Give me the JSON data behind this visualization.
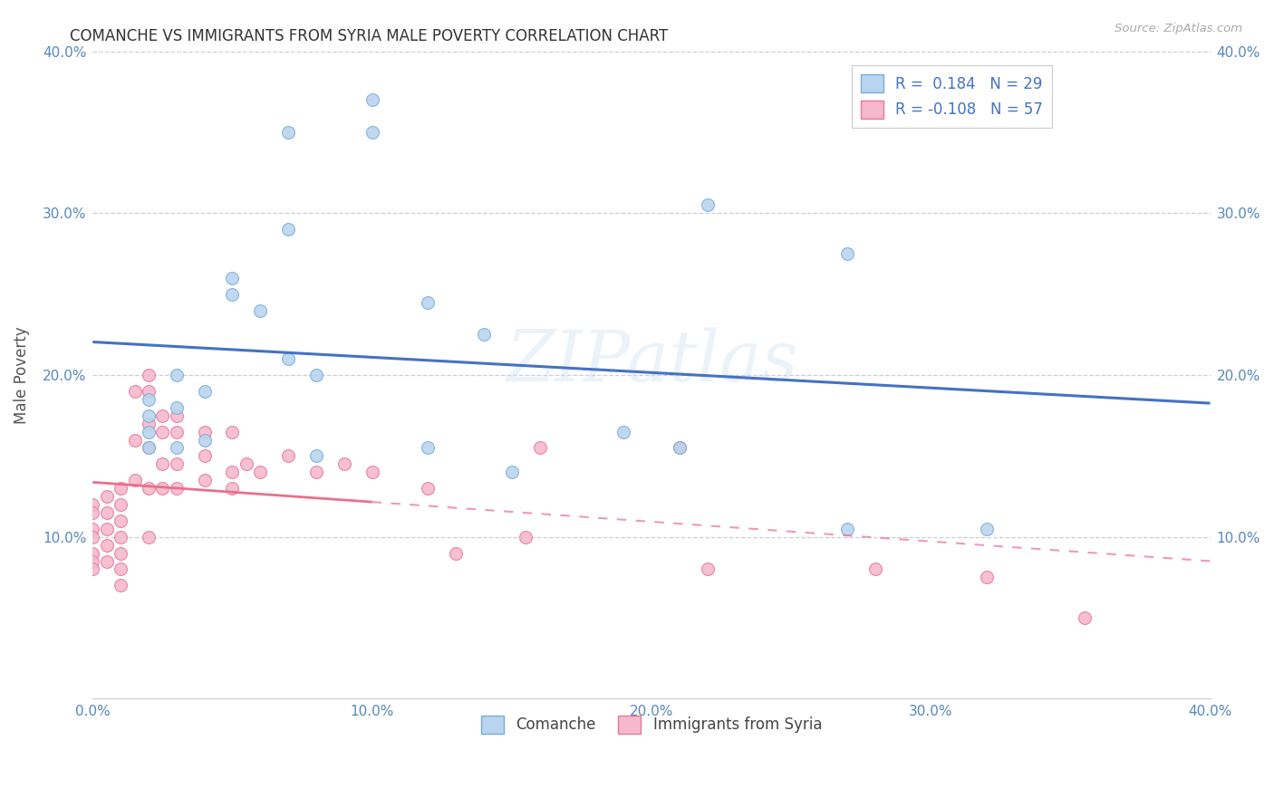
{
  "title": "COMANCHE VS IMMIGRANTS FROM SYRIA MALE POVERTY CORRELATION CHART",
  "source": "Source: ZipAtlas.com",
  "ylabel": "Male Poverty",
  "xlim": [
    -0.005,
    0.405
  ],
  "ylim": [
    -0.005,
    0.425
  ],
  "plot_xlim": [
    0.0,
    0.4
  ],
  "plot_ylim": [
    0.0,
    0.4
  ],
  "xticks": [
    0.0,
    0.1,
    0.2,
    0.3,
    0.4
  ],
  "yticks": [
    0.1,
    0.2,
    0.3,
    0.4
  ],
  "xtick_labels": [
    "0.0%",
    "10.0%",
    "20.0%",
    "30.0%",
    "40.0%"
  ],
  "ytick_labels": [
    "10.0%",
    "20.0%",
    "30.0%",
    "40.0%"
  ],
  "comanche_fill": "#b8d4ee",
  "comanche_edge": "#7aabdc",
  "syria_fill": "#f5b8cc",
  "syria_edge": "#e87898",
  "trend_blue": "#4472c4",
  "trend_pink": "#e8708c",
  "watermark": "ZIPatlas",
  "legend_r1": "R =  0.184   N = 29",
  "legend_r2": "R = -0.108   N = 57",
  "background_color": "#ffffff",
  "grid_color": "#ccccdd",
  "title_color": "#333333",
  "axis_tick_color": "#5588bb",
  "comanche_x": [
    0.1,
    0.1,
    0.07,
    0.07,
    0.05,
    0.05,
    0.06,
    0.07,
    0.08,
    0.03,
    0.04,
    0.03,
    0.02,
    0.02,
    0.02,
    0.02,
    0.03,
    0.04,
    0.12,
    0.14,
    0.08,
    0.12,
    0.19,
    0.22,
    0.27,
    0.27,
    0.32,
    0.15,
    0.21
  ],
  "comanche_y": [
    0.37,
    0.35,
    0.35,
    0.29,
    0.26,
    0.25,
    0.24,
    0.21,
    0.2,
    0.2,
    0.19,
    0.18,
    0.185,
    0.175,
    0.165,
    0.155,
    0.155,
    0.16,
    0.245,
    0.225,
    0.15,
    0.155,
    0.165,
    0.305,
    0.105,
    0.275,
    0.105,
    0.14,
    0.155
  ],
  "syria_x": [
    0.0,
    0.0,
    0.0,
    0.0,
    0.0,
    0.0,
    0.0,
    0.005,
    0.005,
    0.005,
    0.005,
    0.005,
    0.01,
    0.01,
    0.01,
    0.01,
    0.01,
    0.01,
    0.01,
    0.015,
    0.015,
    0.015,
    0.02,
    0.02,
    0.02,
    0.02,
    0.02,
    0.02,
    0.025,
    0.025,
    0.025,
    0.025,
    0.03,
    0.03,
    0.03,
    0.03,
    0.04,
    0.04,
    0.04,
    0.05,
    0.05,
    0.05,
    0.055,
    0.06,
    0.07,
    0.08,
    0.09,
    0.1,
    0.12,
    0.13,
    0.155,
    0.22,
    0.28,
    0.32,
    0.355,
    0.16,
    0.21
  ],
  "syria_y": [
    0.12,
    0.115,
    0.105,
    0.1,
    0.09,
    0.085,
    0.08,
    0.125,
    0.115,
    0.105,
    0.095,
    0.085,
    0.13,
    0.12,
    0.11,
    0.1,
    0.09,
    0.08,
    0.07,
    0.19,
    0.16,
    0.135,
    0.2,
    0.19,
    0.17,
    0.155,
    0.13,
    0.1,
    0.175,
    0.165,
    0.145,
    0.13,
    0.175,
    0.165,
    0.145,
    0.13,
    0.165,
    0.15,
    0.135,
    0.165,
    0.14,
    0.13,
    0.145,
    0.14,
    0.15,
    0.14,
    0.145,
    0.14,
    0.13,
    0.09,
    0.1,
    0.08,
    0.08,
    0.075,
    0.05,
    0.155,
    0.155
  ]
}
